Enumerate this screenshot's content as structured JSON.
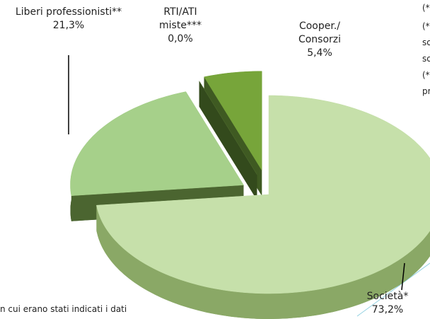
{
  "chart_data": {
    "type": "pie",
    "categories": [
      "Società*",
      "Liberi professionisti**",
      "RTI/ATI miste***",
      "Cooper./ Consorzi"
    ],
    "values": [
      73.2,
      21.3,
      0.0,
      5.4
    ],
    "value_labels": [
      "73,2%",
      "21,3%",
      "0,0%",
      "5,4%"
    ],
    "colors": [
      "#c6e0aa",
      "#a6d08a",
      "#4e6a2e",
      "#77a53a"
    ],
    "side_colors": [
      "#8aa866",
      "#4b6530",
      "#334a1c",
      "#3f5a22"
    ],
    "annotations": [
      "(*",
      "(*",
      "so",
      "so",
      "(*",
      "pr",
      "n cui erano stati indicati i dati"
    ]
  }
}
